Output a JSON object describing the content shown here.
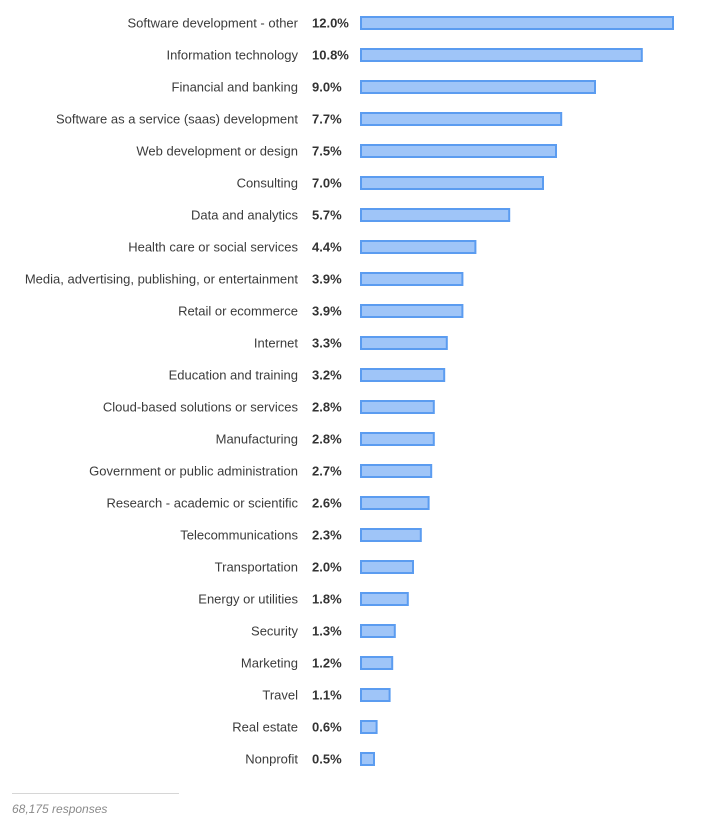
{
  "chart_data": {
    "type": "bar",
    "orientation": "horizontal",
    "categories": [
      "Software development - other",
      "Information technology",
      "Financial and banking",
      "Software as a service (saas) development",
      "Web development or design",
      "Consulting",
      "Data and analytics",
      "Health care or social services",
      "Media, advertising, publishing, or entertainment",
      "Retail or ecommerce",
      "Internet",
      "Education and training",
      "Cloud-based solutions or services",
      "Manufacturing",
      "Government or public administration",
      "Research - academic or scientific",
      "Telecommunications",
      "Transportation",
      "Energy or utilities",
      "Security",
      "Marketing",
      "Travel",
      "Real estate",
      "Nonprofit"
    ],
    "values": [
      12.0,
      10.8,
      9.0,
      7.7,
      7.5,
      7.0,
      5.7,
      4.4,
      3.9,
      3.9,
      3.3,
      3.2,
      2.8,
      2.8,
      2.7,
      2.6,
      2.3,
      2.0,
      1.8,
      1.3,
      1.2,
      1.1,
      0.6,
      0.5
    ],
    "value_labels": [
      "12.0%",
      "10.8%",
      "9.0%",
      "7.7%",
      "7.5%",
      "7.0%",
      "5.7%",
      "4.4%",
      "3.9%",
      "3.9%",
      "3.3%",
      "3.2%",
      "2.8%",
      "2.8%",
      "2.7%",
      "2.6%",
      "2.3%",
      "2.0%",
      "1.8%",
      "1.3%",
      "1.2%",
      "1.1%",
      "0.6%",
      "0.5%"
    ],
    "value_unit": "%",
    "xlim": [
      0,
      12.0
    ],
    "grid": false,
    "bar_fill_color": "#9fc5f8",
    "bar_border_color": "#5b9cf0"
  },
  "footer": {
    "responses": "68,175 responses"
  }
}
